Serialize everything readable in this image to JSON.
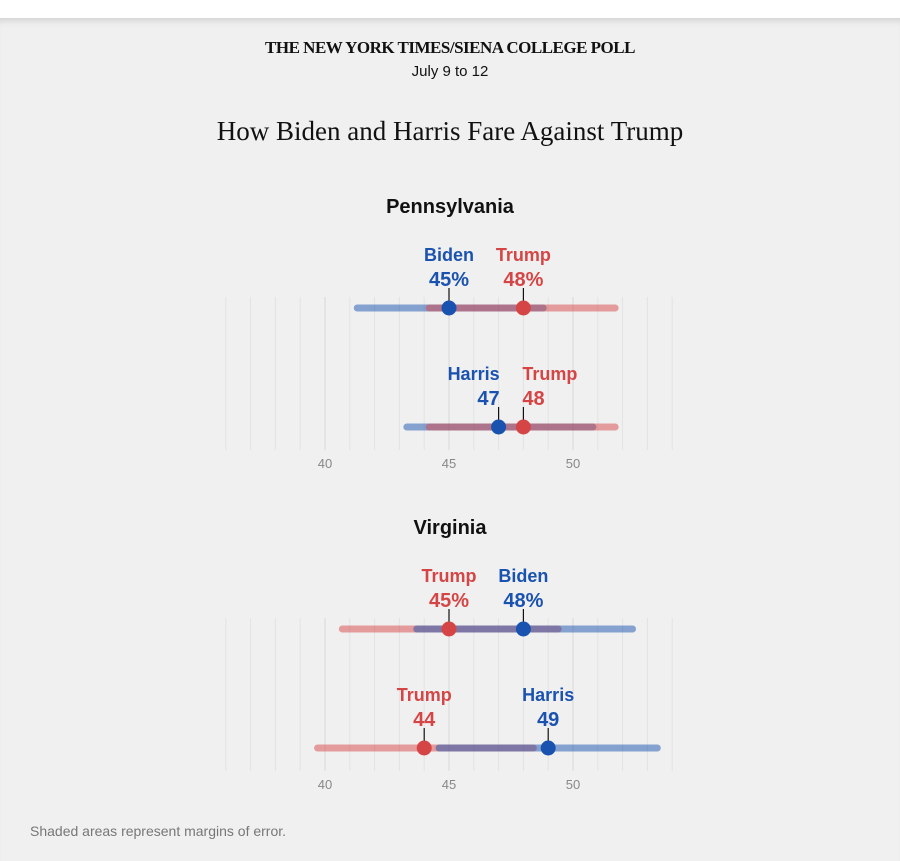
{
  "header": {
    "kicker": "THE NEW YORK TIMES/SIENA COLLEGE POLL",
    "date": "July 9 to 12",
    "title": "How Biden and Harris Fare Against Trump"
  },
  "footnote": "Shaded areas represent margins of error.",
  "colors": {
    "dem": "#1a52b0",
    "rep": "#d64545"
  },
  "chart_data": [
    {
      "type": "dot-range",
      "title": "Pennsylvania",
      "xlim": [
        36,
        54
      ],
      "ticks": [
        40,
        45,
        50
      ],
      "rows": [
        {
          "candidates": [
            {
              "name": "Biden",
              "party": "dem",
              "label": "45%",
              "value": 45,
              "low": 41.3,
              "high": 48.8
            },
            {
              "name": "Trump",
              "party": "rep",
              "label": "48%",
              "value": 48,
              "low": 44.2,
              "high": 51.7
            }
          ]
        },
        {
          "candidates": [
            {
              "name": "Harris",
              "party": "dem",
              "label": "47",
              "value": 47,
              "low": 43.3,
              "high": 50.8
            },
            {
              "name": "Trump",
              "party": "rep",
              "label": "48",
              "value": 48,
              "low": 44.2,
              "high": 51.7
            }
          ]
        }
      ]
    },
    {
      "type": "dot-range",
      "title": "Virginia",
      "xlim": [
        36,
        54
      ],
      "ticks": [
        40,
        45,
        50
      ],
      "rows": [
        {
          "candidates": [
            {
              "name": "Trump",
              "party": "rep",
              "label": "45%",
              "value": 45,
              "low": 40.7,
              "high": 49.4
            },
            {
              "name": "Biden",
              "party": "dem",
              "label": "48%",
              "value": 48,
              "low": 43.7,
              "high": 52.4
            }
          ]
        },
        {
          "candidates": [
            {
              "name": "Trump",
              "party": "rep",
              "label": "44",
              "value": 44,
              "low": 39.7,
              "high": 48.4
            },
            {
              "name": "Harris",
              "party": "dem",
              "label": "49",
              "value": 49,
              "low": 44.6,
              "high": 53.4
            }
          ]
        }
      ]
    }
  ]
}
